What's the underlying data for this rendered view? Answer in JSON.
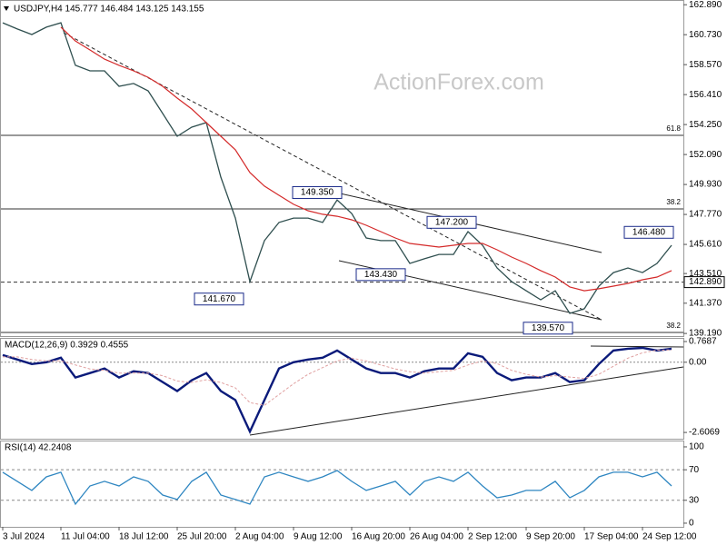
{
  "chart_data": [
    {
      "type": "line",
      "title": "USDJPY,H4  145.777 146.484 143.125 143.155",
      "watermark": "ActionForex.com",
      "categories": [
        "3 Jul 2024",
        null,
        null,
        null,
        "11 Jul 04:00",
        null,
        null,
        null,
        "18 Jul 12:00",
        null,
        null,
        null,
        "25 Jul 20:00",
        null,
        null,
        null,
        "2 Aug 04:00",
        null,
        null,
        null,
        "9 Aug 12:00",
        null,
        null,
        null,
        "16 Aug 20:00",
        null,
        null,
        null,
        "26 Aug 04:00",
        null,
        null,
        null,
        "2 Sep 12:00",
        null,
        null,
        null,
        "9 Sep 20:00",
        null,
        null,
        null,
        "17 Sep 04:00",
        null,
        null,
        null,
        "24 Sep 12:00",
        null,
        null
      ],
      "series": [
        {
          "color": "#2f4f4f",
          "values": [
            161.59,
            161.14,
            160.74,
            161.27,
            161.59,
            158.52,
            158.12,
            158.12,
            157.01,
            157.21,
            156.68,
            155.05,
            153.41,
            154.06,
            154.39,
            150.46,
            147.51,
            142.93,
            145.88,
            147.19,
            147.51,
            147.51,
            147.19,
            148.82,
            147.84,
            146.07,
            145.88,
            145.88,
            144.24,
            144.57,
            144.89,
            144.89,
            146.53,
            145.55,
            143.91,
            142.93,
            142.27,
            141.62,
            142.27,
            140.64,
            140.97,
            142.6,
            143.58,
            143.91,
            143.58,
            144.24,
            145.55
          ]
        },
        {
          "color": "#d42a2a",
          "values": [
            null,
            null,
            null,
            null,
            161.27,
            160.28,
            159.63,
            158.97,
            158.52,
            158.12,
            157.66,
            157.01,
            156.16,
            155.37,
            154.39,
            153.41,
            152.43,
            150.79,
            149.81,
            149.15,
            148.5,
            148.04,
            147.78,
            147.64,
            147.38,
            146.99,
            146.53,
            146.07,
            145.68,
            145.55,
            145.42,
            145.55,
            145.68,
            145.68,
            145.22,
            144.7,
            144.24,
            143.72,
            143.26,
            142.54,
            142.27,
            142.41,
            142.6,
            142.8,
            143.06,
            143.26,
            143.72
          ]
        }
      ],
      "ylim": [
        139.0,
        163.1
      ],
      "yticks": [
        {
          "value": 139.19,
          "label": "139.190"
        },
        {
          "value": 141.37,
          "label": "141.370"
        },
        {
          "value": 143.51,
          "label": "143.510"
        },
        {
          "value": 145.61,
          "label": "145.610"
        },
        {
          "value": 147.77,
          "label": "147.770"
        },
        {
          "value": 149.93,
          "label": "149.930"
        },
        {
          "value": 152.09,
          "label": "152.090"
        },
        {
          "value": 154.25,
          "label": "154.250"
        },
        {
          "value": 156.41,
          "label": "156.410"
        },
        {
          "value": 158.57,
          "label": "158.570"
        },
        {
          "value": 160.73,
          "label": "160.730"
        },
        {
          "value": 162.89,
          "label": "162.890"
        }
      ],
      "current": {
        "value": 142.89,
        "label": "142.890"
      },
      "levels": [
        {
          "value": 153.47,
          "label": "61.8"
        },
        {
          "value": 148.17,
          "label": "38.2"
        },
        {
          "value": 139.26,
          "label": "38.2"
        }
      ],
      "price_labels": [
        {
          "value": 149.35,
          "label": "149.350"
        },
        {
          "value": 147.2,
          "label": "147.200"
        },
        {
          "value": 146.48,
          "label": "146.480"
        },
        {
          "value": 141.67,
          "label": "141.670"
        },
        {
          "value": 143.43,
          "label": "143.430"
        },
        {
          "value": 139.57,
          "label": "139.570"
        }
      ]
    },
    {
      "type": "line",
      "title": "MACD(12,26,9) 0.3929 0.4555",
      "series": [
        {
          "color": "#0a1a7a",
          "values": [
            0.267,
            0.1,
            -0.067,
            0,
            0.167,
            -0.568,
            -0.401,
            -0.234,
            -0.568,
            -0.334,
            -0.401,
            -0.735,
            -1.069,
            -0.668,
            -0.401,
            -1.069,
            -1.404,
            -2.573,
            -1.404,
            -0.234,
            0,
            0.1,
            0.167,
            0.434,
            0.1,
            -0.234,
            -0.401,
            -0.401,
            -0.568,
            -0.334,
            -0.234,
            -0.234,
            0.334,
            0.201,
            -0.401,
            -0.668,
            -0.568,
            -0.568,
            -0.401,
            -0.735,
            -0.668,
            -0.067,
            0.434,
            0.501,
            0.534,
            0.434,
            0.501
          ]
        },
        {
          "color": "#e0a0a0",
          "values": [
            0.2,
            0.2,
            0.1,
            0.05,
            0.05,
            -0.1,
            -0.25,
            -0.3,
            -0.4,
            -0.4,
            -0.4,
            -0.5,
            -0.7,
            -0.75,
            -0.65,
            -0.75,
            -0.95,
            -1.5,
            -1.6,
            -1.2,
            -0.8,
            -0.45,
            -0.2,
            0.05,
            0.15,
            0.05,
            -0.1,
            -0.25,
            -0.35,
            -0.4,
            -0.35,
            -0.3,
            -0.1,
            0.05,
            -0.05,
            -0.3,
            -0.45,
            -0.55,
            -0.5,
            -0.55,
            -0.6,
            -0.45,
            -0.15,
            0.15,
            0.35,
            0.45,
            0.46
          ]
        }
      ],
      "ylim": [
        -2.84,
        0.87
      ],
      "yticks": [
        {
          "value": 0.7687,
          "label": "0.7687"
        },
        {
          "value": 0,
          "label": "0.00"
        },
        {
          "value": -2.6069,
          "label": "-2.6069"
        }
      ]
    },
    {
      "type": "line",
      "title": "RSI(14) 42.2408",
      "series": [
        {
          "color": "#2e86c1",
          "values": [
            66.7,
            54.8,
            42.9,
            60.7,
            66.7,
            25,
            48.8,
            54.8,
            48.8,
            60.7,
            54.8,
            36.9,
            31,
            54.8,
            66.7,
            36.9,
            31,
            25,
            60.7,
            66.7,
            60.7,
            54.8,
            60.7,
            69,
            54.8,
            42.9,
            48.8,
            54.8,
            36.9,
            54.8,
            60.7,
            54.8,
            66.7,
            48.8,
            33.3,
            36.9,
            42.9,
            42.9,
            54.8,
            33.3,
            42.9,
            60.7,
            66.7,
            66.7,
            60.7,
            66.7,
            48.8
          ]
        }
      ],
      "ylim": [
        -4.8,
        107.1
      ],
      "yticks": [
        100,
        70,
        30,
        0
      ],
      "dashed_levels": [
        70,
        30
      ]
    }
  ]
}
